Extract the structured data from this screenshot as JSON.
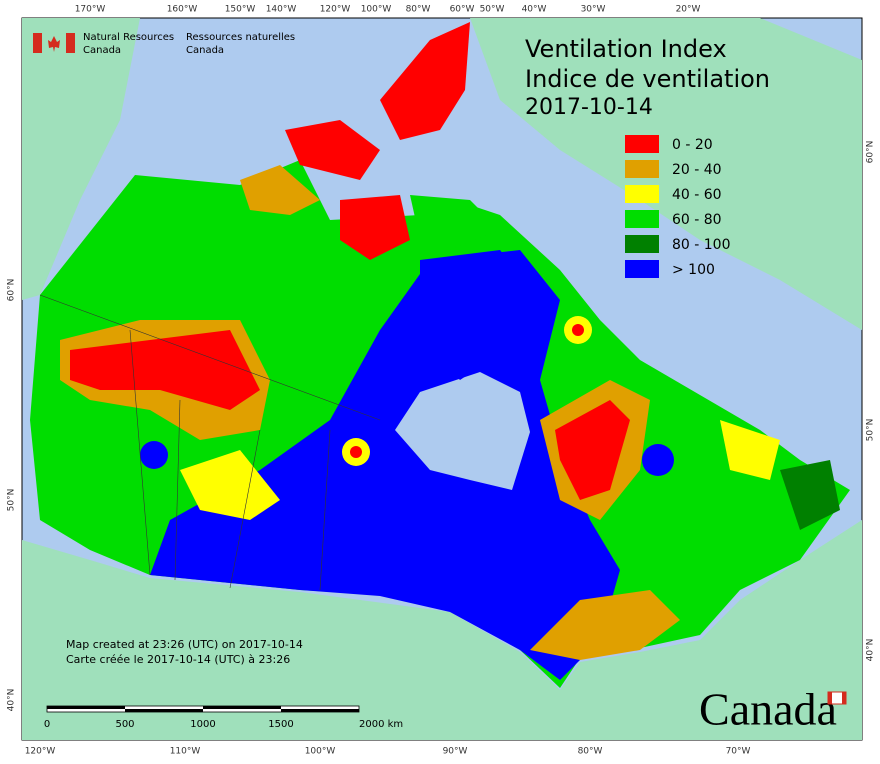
{
  "header": {
    "title_en": "Ventilation Index",
    "title_fr": "Indice de ventilation",
    "date": "2017-10-14"
  },
  "agency": {
    "en": [
      "Natural Resources",
      "Canada"
    ],
    "fr": [
      "Ressources naturelles",
      "Canada"
    ]
  },
  "legend": [
    {
      "label": "0 - 20",
      "color": "#ff0000"
    },
    {
      "label": "20 - 40",
      "color": "#e0a000"
    },
    {
      "label": "40 - 60",
      "color": "#ffff00"
    },
    {
      "label": "60 - 80",
      "color": "#00dd00"
    },
    {
      "label": "80 - 100",
      "color": "#008000"
    },
    {
      "label": "> 100",
      "color": "#0000ff"
    }
  ],
  "graticule": {
    "top": [
      "170°W",
      "160°W",
      "150°W",
      "140°W",
      "120°W",
      "100°W",
      "80°W",
      "60°W",
      "50°W",
      "40°W",
      "30°W",
      "20°W"
    ],
    "bottom": [
      "120°W",
      "110°W",
      "100°W",
      "90°W",
      "80°W",
      "70°W"
    ],
    "left": [
      "60°N",
      "50°N",
      "40°N"
    ],
    "right": [
      "60°N",
      "50°N",
      "40°N"
    ]
  },
  "notes": [
    "Map created at 23:26 (UTC) on 2017-10-14",
    "Carte créée le 2017-10-14 (UTC) à 23:26"
  ],
  "scale_bar": [
    "0",
    "500",
    "1000",
    "1500",
    "2000 km"
  ],
  "wordmark": "Canada"
}
